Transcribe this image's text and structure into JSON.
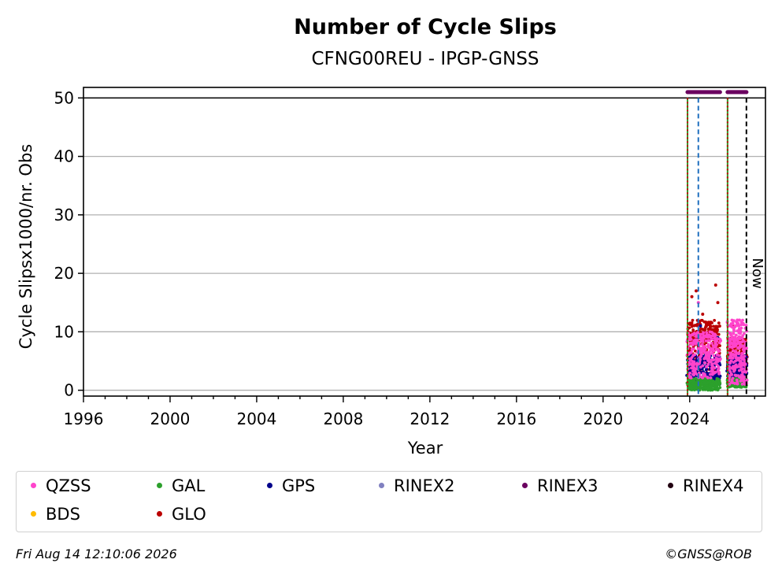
{
  "chart_data": {
    "type": "scatter",
    "title": "Number of Cycle Slips",
    "subtitle": "CFNG00REU - IPGP-GNSS",
    "xlabel": "Year",
    "ylabel": "Cycle Slipsx1000/nr. Obs",
    "xlim": [
      1996,
      2027.5
    ],
    "ylim": [
      -1,
      51.8
    ],
    "x_ticks": [
      "1996",
      "2000",
      "2004",
      "2008",
      "2012",
      "2016",
      "2020",
      "2024"
    ],
    "y_ticks": [
      "0",
      "10",
      "20",
      "30",
      "40",
      "50"
    ],
    "grid": "horizontal",
    "reference_line": 50,
    "now_label": "Now",
    "vertical_markers": [
      {
        "x": 2023.9,
        "color": "#2ca02c",
        "style": "solid"
      },
      {
        "x": 2023.9,
        "color": "#cc0000",
        "style": "dotted"
      },
      {
        "x": 2024.4,
        "color": "#1f6fbf",
        "style": "dashed"
      },
      {
        "x": 2025.75,
        "color": "#2ca02c",
        "style": "solid"
      },
      {
        "x": 2025.75,
        "color": "#cc0000",
        "style": "dotted"
      },
      {
        "x": 2026.62,
        "color": "#000000",
        "style": "dashed"
      }
    ],
    "series": [
      {
        "name": "QZSS",
        "color": "#ff44cc",
        "segments": [
          [
            2023.9,
            2025.4,
            2,
            10
          ],
          [
            2025.75,
            2026.62,
            1,
            12
          ]
        ],
        "peaks": [
          [
            2024.4,
            15
          ],
          [
            2026.2,
            12
          ],
          [
            2026.3,
            12
          ]
        ]
      },
      {
        "name": "GAL",
        "color": "#2ca02c",
        "segments": [
          [
            2023.9,
            2025.4,
            0,
            2
          ],
          [
            2025.75,
            2026.62,
            0.5,
            2
          ]
        ],
        "peaks": []
      },
      {
        "name": "GPS",
        "color": "#00008b",
        "segments": [
          [
            2023.9,
            2025.4,
            1,
            6
          ],
          [
            2025.75,
            2026.62,
            2,
            6
          ]
        ],
        "peaks": [
          [
            2024.5,
            11
          ],
          [
            2025.3,
            9
          ]
        ]
      },
      {
        "name": "RINEX2",
        "color": "#8080c0",
        "segments": [],
        "peaks": []
      },
      {
        "name": "RINEX3",
        "color": "#6b0060",
        "segments": [
          [
            2023.9,
            2025.4,
            51,
            51
          ],
          [
            2025.75,
            2026.62,
            51,
            51
          ]
        ],
        "peaks": []
      },
      {
        "name": "RINEX4",
        "color": "#220011",
        "segments": [],
        "peaks": []
      },
      {
        "name": "BDS",
        "color": "#ffbb00",
        "segments": [],
        "peaks": []
      },
      {
        "name": "GLO",
        "color": "#bb0000",
        "segments": [
          [
            2023.9,
            2025.4,
            3,
            12
          ],
          [
            2025.75,
            2026.62,
            3,
            9
          ]
        ],
        "peaks": [
          [
            2024.1,
            16
          ],
          [
            2024.3,
            17
          ],
          [
            2024.6,
            13
          ],
          [
            2025.2,
            18
          ],
          [
            2025.3,
            15
          ],
          [
            2026.0,
            11
          ]
        ]
      }
    ]
  },
  "footer": {
    "timestamp": "Fri Aug 14 12:10:06 2026",
    "copyright": "©GNSS@ROB"
  }
}
